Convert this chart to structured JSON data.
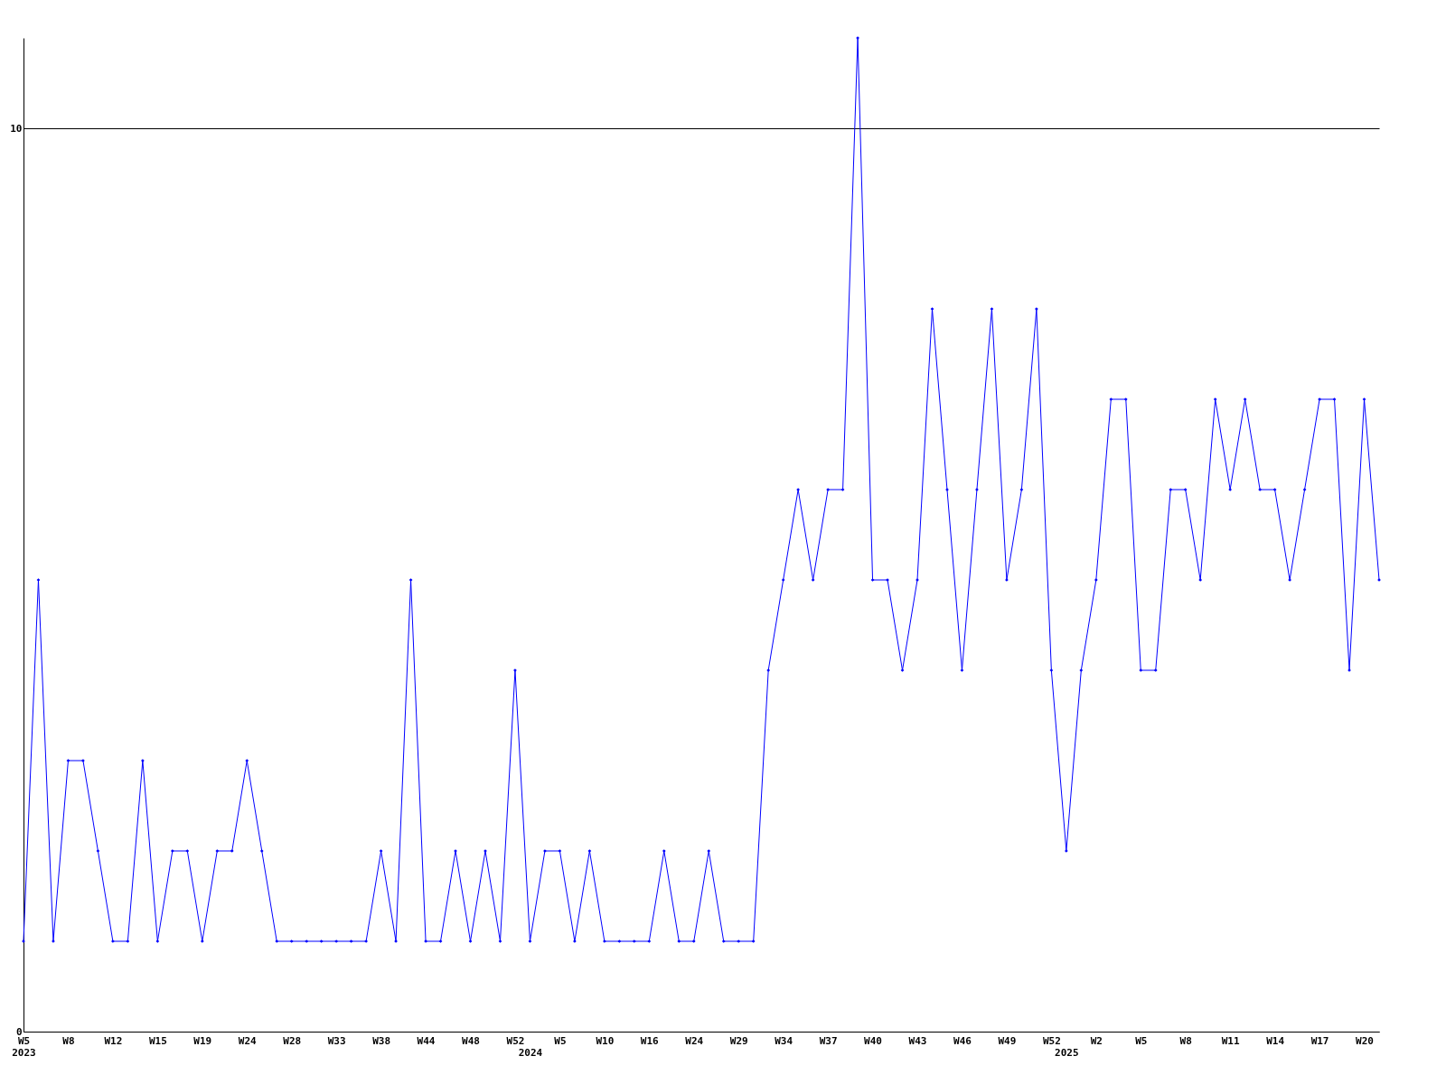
{
  "chart_data": {
    "type": "line",
    "categories": [
      "W5\n2023",
      null,
      null,
      "W8",
      null,
      null,
      "W12",
      null,
      null,
      "W15",
      null,
      null,
      "W19",
      null,
      null,
      "W24",
      null,
      null,
      "W28",
      null,
      null,
      "W33",
      null,
      null,
      "W38",
      null,
      null,
      "W44",
      null,
      null,
      "W48",
      null,
      null,
      "W52",
      "\n2024",
      null,
      "W5",
      null,
      null,
      "W10",
      null,
      null,
      "W16",
      null,
      null,
      "W24",
      null,
      null,
      "W29",
      null,
      null,
      "W34",
      null,
      null,
      "W37",
      null,
      null,
      "W40",
      null,
      null,
      "W43",
      null,
      null,
      "W46",
      null,
      null,
      "W49",
      null,
      null,
      "W52",
      "\n2025",
      null,
      "W2",
      null,
      null,
      "W5",
      null,
      null,
      "W8",
      null,
      null,
      "W11",
      null,
      null,
      "W14",
      null,
      null,
      "W17",
      null,
      null,
      "W20",
      null
    ],
    "series": [
      {
        "color": "#0000ff",
        "values": [
          1,
          5,
          1,
          3,
          3,
          2,
          1,
          1,
          3,
          1,
          2,
          2,
          1,
          2,
          2,
          3,
          2,
          1,
          1,
          1,
          1,
          1,
          1,
          1,
          2,
          1,
          5,
          1,
          1,
          2,
          1,
          2,
          1,
          4,
          1,
          2,
          2,
          1,
          2,
          1,
          1,
          1,
          1,
          2,
          1,
          1,
          2,
          1,
          1,
          1,
          4,
          5,
          6,
          5,
          6,
          6,
          11,
          5,
          5,
          4,
          5,
          8,
          6,
          4,
          6,
          8,
          5,
          6,
          8,
          4,
          2,
          4,
          5,
          7,
          7,
          4,
          4,
          6,
          6,
          5,
          7,
          6,
          7,
          6,
          6,
          5,
          6,
          7,
          7,
          4,
          7,
          5
        ]
      }
    ],
    "ylim": [
      0,
      11
    ],
    "yticks": [
      0,
      10
    ],
    "grid": "y",
    "marker": "diamond",
    "line_style": "solid"
  }
}
